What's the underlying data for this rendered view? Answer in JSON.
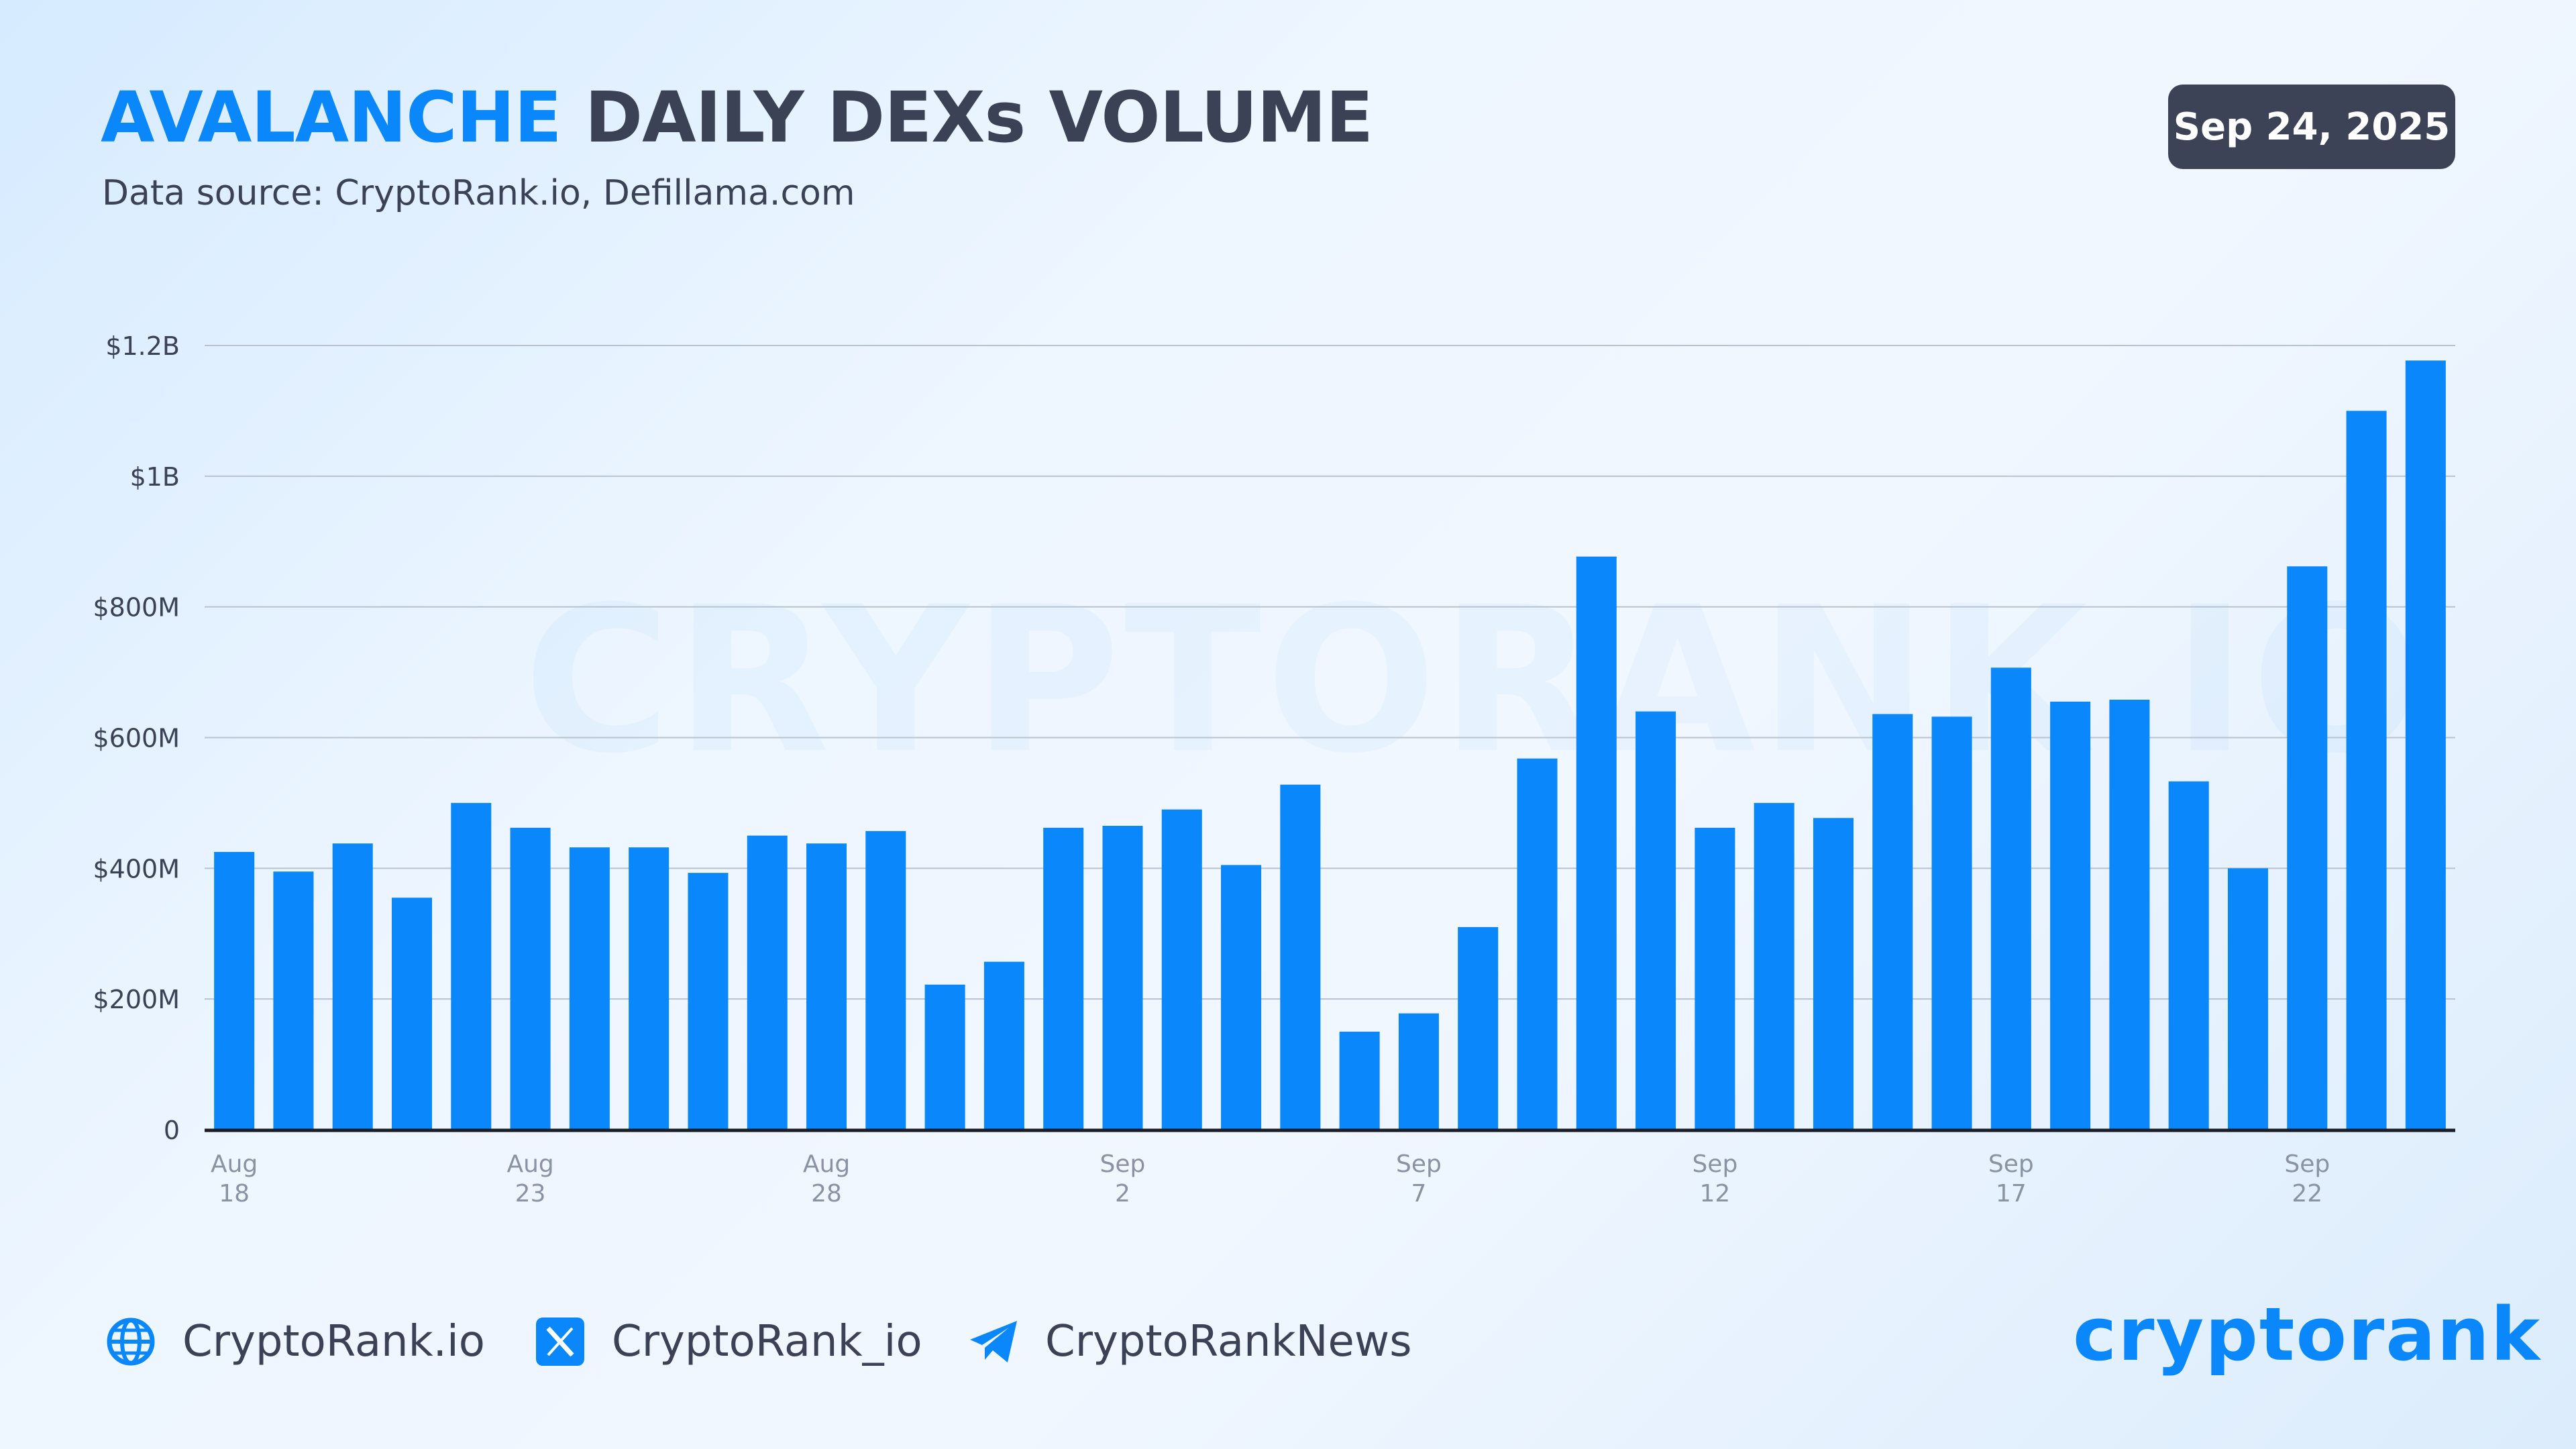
{
  "header": {
    "title_accent": "AVALANCHE",
    "title_rest": "DAILY DEXs VOLUME",
    "subtitle": "Data source: CryptoRank.io, Defillama.com",
    "date": "Sep 24, 2025"
  },
  "watermark": "CRYPTORANK.IO",
  "colors": {
    "accent": "#0a88fb",
    "dark": "#3d4357",
    "bar": "#0a88fb"
  },
  "chart_data": {
    "type": "bar",
    "categories": [
      "Aug 18",
      "Aug 19",
      "Aug 20",
      "Aug 21",
      "Aug 22",
      "Aug 23",
      "Aug 24",
      "Aug 25",
      "Aug 26",
      "Aug 27",
      "Aug 28",
      "Aug 29",
      "Aug 30",
      "Aug 31",
      "Sep 1",
      "Sep 2",
      "Sep 3",
      "Sep 4",
      "Sep 5",
      "Sep 6",
      "Sep 7",
      "Sep 8",
      "Sep 9",
      "Sep 10",
      "Sep 11",
      "Sep 12",
      "Sep 13",
      "Sep 14",
      "Sep 15",
      "Sep 16",
      "Sep 17",
      "Sep 18",
      "Sep 19",
      "Sep 20",
      "Sep 21",
      "Sep 22",
      "Sep 23",
      "Sep 24"
    ],
    "values": [
      425,
      395,
      438,
      355,
      500,
      462,
      432,
      432,
      393,
      450,
      438,
      457,
      222,
      257,
      462,
      465,
      490,
      405,
      528,
      150,
      178,
      310,
      568,
      877,
      640,
      462,
      500,
      477,
      636,
      632,
      707,
      655,
      658,
      533,
      400,
      862,
      1100,
      1177
    ],
    "value_unit": "USD millions",
    "ylim": [
      0,
      1200
    ],
    "yticks": [
      {
        "value": 0,
        "label": "0"
      },
      {
        "value": 200,
        "label": "$200M"
      },
      {
        "value": 400,
        "label": "$400M"
      },
      {
        "value": 600,
        "label": "$600M"
      },
      {
        "value": 800,
        "label": "$800M"
      },
      {
        "value": 1000,
        "label": "$1B"
      },
      {
        "value": 1200,
        "label": "$1.2B"
      }
    ],
    "xticks": [
      {
        "index": 0,
        "month": "Aug",
        "day": "18"
      },
      {
        "index": 5,
        "month": "Aug",
        "day": "23"
      },
      {
        "index": 10,
        "month": "Aug",
        "day": "28"
      },
      {
        "index": 15,
        "month": "Sep",
        "day": "2"
      },
      {
        "index": 20,
        "month": "Sep",
        "day": "7"
      },
      {
        "index": 25,
        "month": "Sep",
        "day": "12"
      },
      {
        "index": 30,
        "month": "Sep",
        "day": "17"
      },
      {
        "index": 35,
        "month": "Sep",
        "day": "22"
      }
    ],
    "grid": true,
    "legend": "none"
  },
  "footer": {
    "website": "CryptoRank.io",
    "twitter": "CryptoRank_io",
    "telegram": "CryptoRankNews",
    "logo": "cryptorank"
  }
}
